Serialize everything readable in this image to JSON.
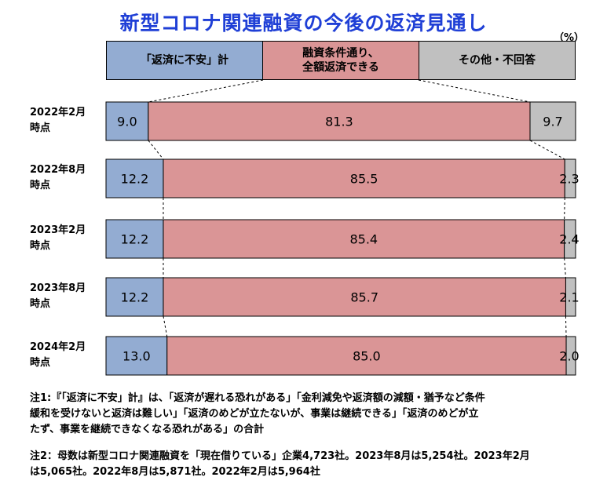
{
  "title": "新型コロナ関連融資の今後の返済見通し",
  "unit": "（%）",
  "colors": {
    "unsure": "#93acd2",
    "full": "#da9596",
    "other": "#c0c0c0",
    "title": "#1f3fd6"
  },
  "legend": [
    {
      "lines": [
        "「返済に不安」計"
      ]
    },
    {
      "lines": [
        "融資条件通り、",
        "全額返済できる"
      ]
    },
    {
      "lines": [
        "その他・不回答"
      ]
    }
  ],
  "chart_data": {
    "type": "bar",
    "orientation": "horizontal",
    "stacked": "100%",
    "categories": [
      [
        "2022年2月",
        "時点"
      ],
      [
        "2022年8月",
        "時点"
      ],
      [
        "2023年2月",
        "時点"
      ],
      [
        "2023年8月",
        "時点"
      ],
      [
        "2024年2月",
        "時点"
      ]
    ],
    "series": [
      {
        "name": "「返済に不安」計",
        "values": [
          9.0,
          12.2,
          12.2,
          12.2,
          13.0
        ]
      },
      {
        "name": "融資条件通り、全額返済できる",
        "values": [
          81.3,
          85.5,
          85.4,
          85.7,
          85.0
        ]
      },
      {
        "name": "その他・不回答",
        "values": [
          9.7,
          2.3,
          2.4,
          2.1,
          2.0
        ]
      }
    ],
    "value_labels": [
      [
        "9.0",
        "81.3",
        "9.7"
      ],
      [
        "12.2",
        "85.5",
        "2.3"
      ],
      [
        "12.2",
        "85.4",
        "2.4"
      ],
      [
        "12.2",
        "85.7",
        "2.1"
      ],
      [
        "13.0",
        "85.0",
        "2.0"
      ]
    ],
    "series_lines": "dashed"
  },
  "notes": [
    [
      "注1:『「返済に不安」計』は、「返済が遅れる恐れがある」「金利減免や返済額の減額・猶予など条件",
      "緩和を受けないと返済は難しい」「返済のめどが立たないが、事業は継続できる」「返済のめどが立",
      "たず、事業を継続できなくなる恐れがある」の合計"
    ],
    [
      "注2：母数は新型コロナ関連融資を「現在借りている」企業4,723社。2023年8月は5,254社。2023年2月",
      "は5,065社。2022年8月は5,871社。2022年2月は5,964社"
    ]
  ]
}
